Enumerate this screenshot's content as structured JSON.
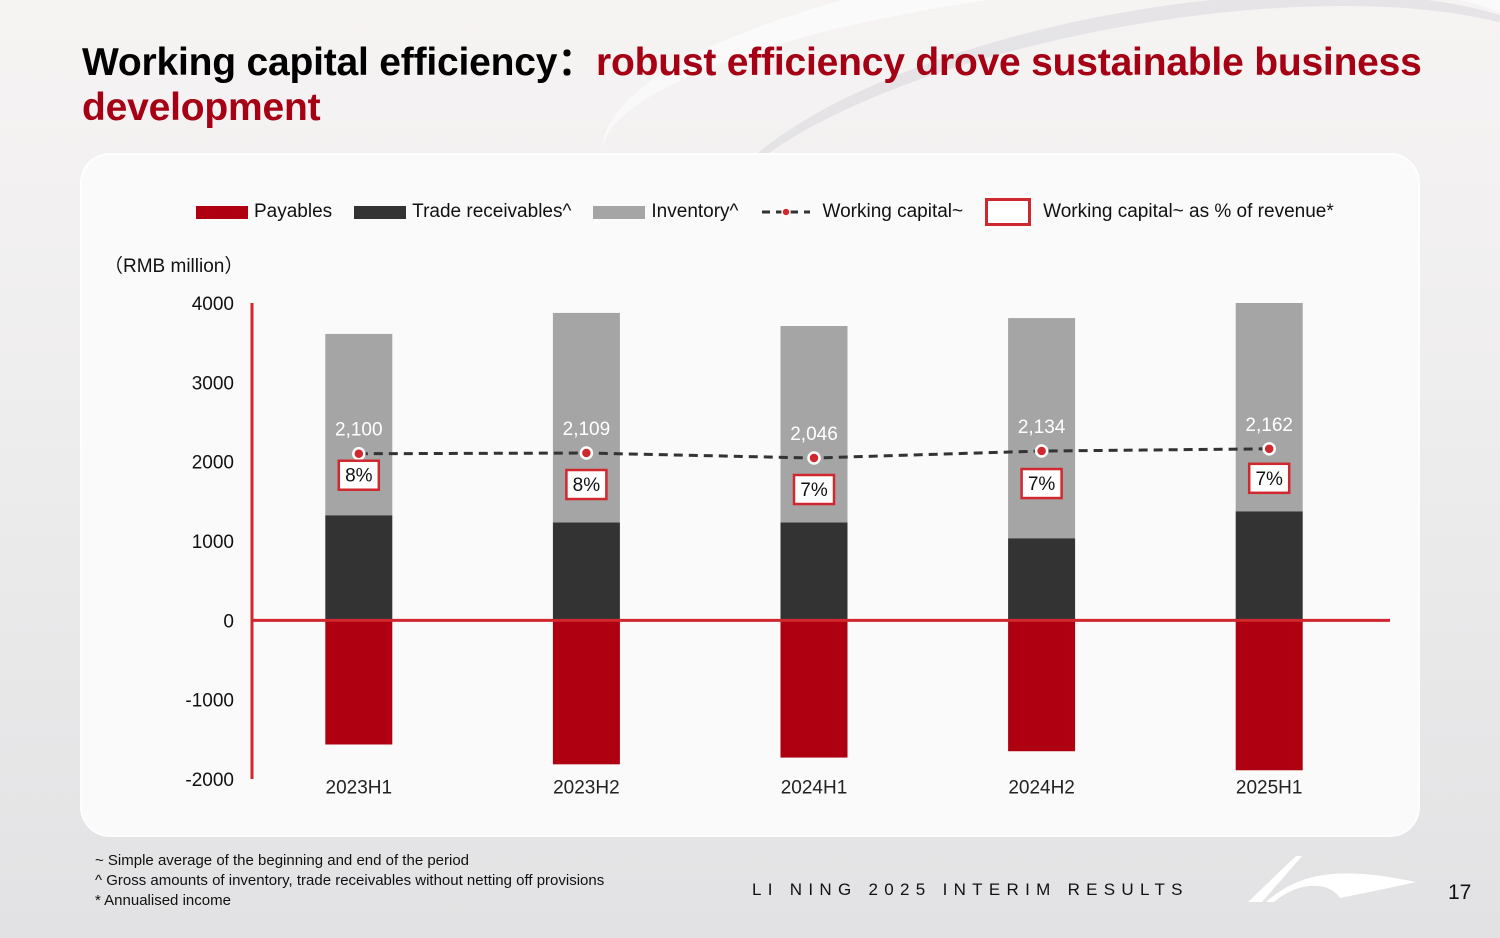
{
  "slide": {
    "title_black": "Working capital efficiency：",
    "title_red": "robust efficiency drove sustainable business development",
    "footnotes": [
      "~ Simple average of the beginning and end of the period",
      "^ Gross amounts of inventory, trade receivables without netting off provisions",
      "* Annualised income"
    ],
    "footer_brand": "LI NING 2025 INTERIM RESULTS",
    "page_number": "17",
    "logo_icon": "li-ning-swoosh-logo"
  },
  "chart_data": {
    "type": "bar",
    "stacked": true,
    "unit_label": "（RMB million）",
    "categories": [
      "2023H1",
      "2023H2",
      "2024H1",
      "2024H2",
      "2025H1"
    ],
    "ylim": [
      -2000,
      4000
    ],
    "yticks": [
      4000,
      3000,
      2000,
      1000,
      0,
      -1000,
      -2000
    ],
    "grid": false,
    "legend_position": "top",
    "series": [
      {
        "name": "Payables",
        "kind": "bar",
        "color": "#ae0011",
        "values": [
          -1565,
          -1815,
          -1730,
          -1650,
          -1890
        ]
      },
      {
        "name": "Trade receivables^",
        "kind": "bar",
        "color": "#333333",
        "values": [
          1325,
          1235,
          1235,
          1035,
          1375
        ]
      },
      {
        "name": "Inventory^",
        "kind": "bar",
        "color": "#a5a5a5",
        "values": [
          2285,
          2640,
          2475,
          2775,
          2625
        ]
      },
      {
        "name": "Working capital~",
        "kind": "line",
        "color": "#333333",
        "marker_color": "#d0282e",
        "values": [
          2100,
          2109,
          2046,
          2134,
          2162
        ],
        "labels": [
          "2,100",
          "2,109",
          "2,046",
          "2,134",
          "2,162"
        ]
      },
      {
        "name": "Working capital~ as % of revenue*",
        "kind": "label-box",
        "color": "#d0282e",
        "values": [
          8,
          8,
          7,
          7,
          7
        ],
        "labels": [
          "8%",
          "8%",
          "7%",
          "7%",
          "7%"
        ]
      }
    ],
    "axis_color": "#d0282e"
  }
}
